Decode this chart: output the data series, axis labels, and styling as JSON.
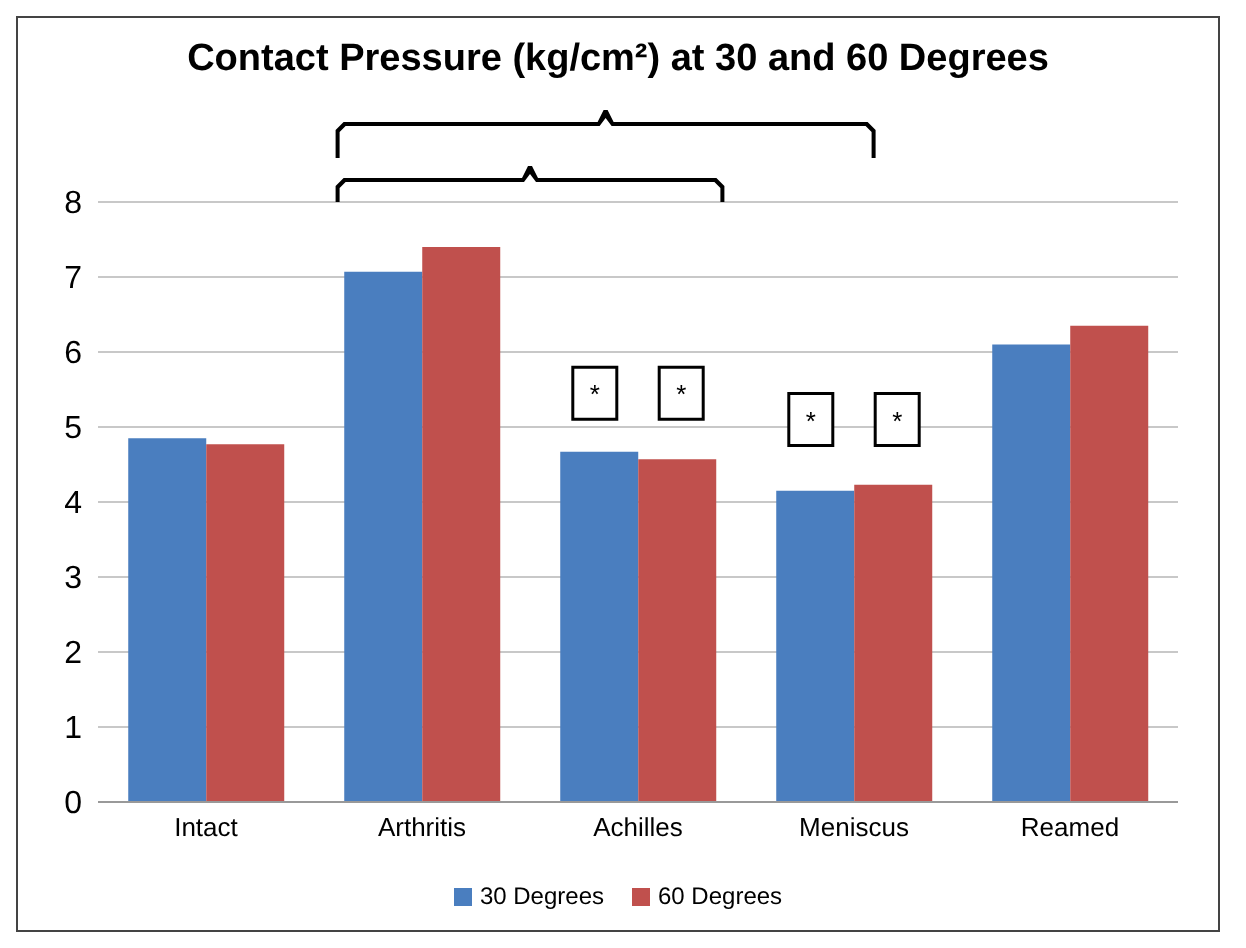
{
  "chart_data": {
    "type": "bar",
    "title": "Contact Pressure (kg/cm²) at 30 and 60 Degrees",
    "categories": [
      "Intact",
      "Arthritis",
      "Achilles",
      "Meniscus",
      "Reamed"
    ],
    "series": [
      {
        "name": "30 Degrees",
        "color": "#4a7ebf",
        "values": [
          4.85,
          7.07,
          4.67,
          4.15,
          6.1
        ]
      },
      {
        "name": "60 Degrees",
        "color": "#c0504d",
        "values": [
          4.77,
          7.4,
          4.57,
          4.23,
          6.35
        ]
      }
    ],
    "annotations": [
      "*",
      "*",
      "*",
      "*"
    ],
    "ylim": [
      0,
      8
    ],
    "yticks": [
      0,
      1,
      2,
      3,
      4,
      5,
      6,
      7,
      8
    ],
    "grid": "y",
    "legend": "bottom"
  }
}
